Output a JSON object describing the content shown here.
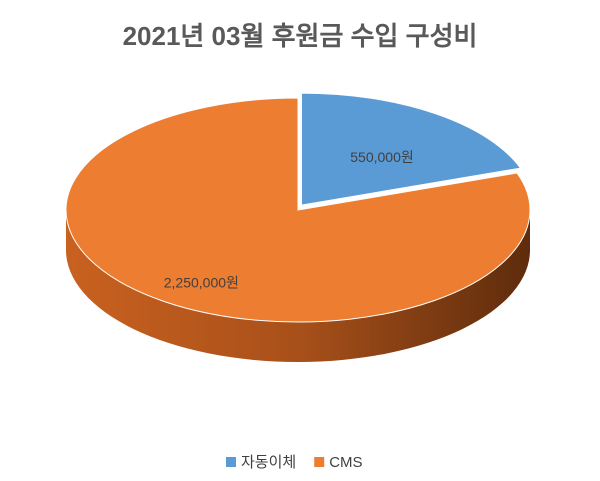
{
  "chart_data": {
    "type": "pie",
    "title": "2021년 03월 후원금 수입 구성비",
    "categories": [
      "자동이체",
      "CMS"
    ],
    "values": [
      550000,
      2250000
    ],
    "value_labels": [
      "550,000원",
      "2,250,000원"
    ],
    "colors": [
      "#5b9bd5",
      "#ed7d31"
    ],
    "legend": "bottom"
  }
}
